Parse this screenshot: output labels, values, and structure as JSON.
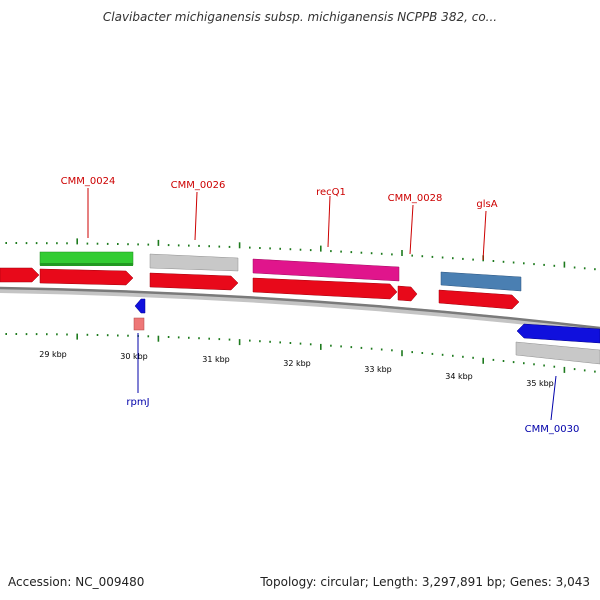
{
  "title": "Clavibacter michiganensis subsp. michiganensis NCPPB 382, co...",
  "footer": {
    "accession": "Accession: NC_009480",
    "summary": "Topology: circular; Length: 3,297,891 bp; Genes: 3,043"
  },
  "colors": {
    "backbone": "#8a8a8a",
    "forward_label": "#cc0000",
    "reverse_label": "#0000aa",
    "tick": "#1d7a1d",
    "cds_red": "#e8091a",
    "gene_green": "#33cc33",
    "gene_gray": "#c8c8c8",
    "gene_magenta": "#e0158c",
    "gene_steelblue": "#4a7fb2",
    "gene_blue": "#1010dd",
    "gene_pink": "#ee7777"
  },
  "chart_data": {
    "type": "genome-map",
    "visible_range_kbp": [
      28.5,
      35.8
    ],
    "scale_labels": [
      "29 kbp",
      "30 kbp",
      "31 kbp",
      "32 kbp",
      "33 kbp",
      "34 kbp",
      "35 kbp"
    ],
    "labeled_genes": [
      {
        "name": "CMM_0024",
        "strand": "forward"
      },
      {
        "name": "CMM_0026",
        "strand": "forward"
      },
      {
        "name": "recQ1",
        "strand": "forward"
      },
      {
        "name": "CMM_0028",
        "strand": "forward"
      },
      {
        "name": "glsA",
        "strand": "forward"
      },
      {
        "name": "rpmJ",
        "strand": "reverse"
      },
      {
        "name": "CMM_0030",
        "strand": "reverse"
      }
    ]
  }
}
